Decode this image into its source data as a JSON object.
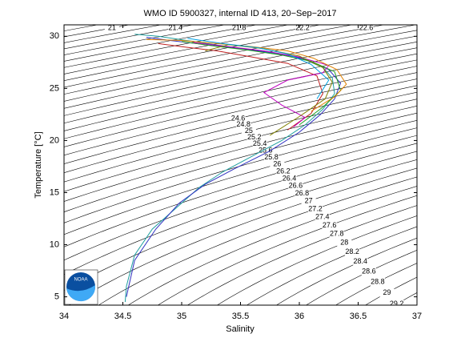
{
  "chart_data": {
    "type": "ts_diagram",
    "title": "WMO ID 5900327, internal ID 413, 20−Sep−2017",
    "x_label": "Salinity",
    "y_label": "Temperature [°C]",
    "xlim": [
      34,
      37
    ],
    "xticks": [
      34,
      34.5,
      35,
      35.5,
      36,
      36.5,
      37
    ],
    "ylim": [
      4.2,
      31.1
    ],
    "yticks": [
      5,
      10,
      15,
      20,
      25,
      30
    ],
    "contour_levels": [
      20.4,
      20.6,
      20.8,
      21,
      21.2,
      21.4,
      21.6,
      21.8,
      22,
      22.2,
      22.4,
      22.6,
      22.8,
      23,
      23.2,
      23.4,
      23.6,
      23.8,
      24,
      24.2,
      24.4,
      24.6,
      24.8,
      25,
      25.2,
      25.4,
      25.6,
      25.8,
      26,
      26.2,
      26.4,
      26.6,
      26.8,
      27,
      27.2,
      27.4,
      27.6,
      27.8,
      28,
      28.2,
      28.4,
      28.6,
      28.8,
      29,
      29.2,
      29.4
    ],
    "series": [
      {
        "color": "#1f9fa0",
        "x": [
          34.52,
          34.53,
          34.6,
          34.75,
          34.95,
          35.15,
          35.35,
          35.6,
          35.85,
          36.05,
          36.2,
          36.3,
          36.28,
          36.2,
          36.0,
          35.7,
          35.4,
          35.1,
          34.8,
          34.6
        ],
        "values": [
          4.5,
          6,
          9,
          11.5,
          13.5,
          15.5,
          17,
          18.5,
          20,
          21.5,
          23,
          24.5,
          26,
          27,
          28,
          28.5,
          29,
          29.5,
          30,
          30.2
        ]
      },
      {
        "color": "#3030c0",
        "x": [
          34.53,
          34.6,
          34.78,
          34.98,
          35.2,
          35.45,
          35.75,
          36.0,
          36.18,
          36.3,
          36.35,
          36.25,
          36.05,
          35.8,
          35.5,
          35.2,
          34.9,
          34.7
        ],
        "values": [
          5,
          8.5,
          11.5,
          14,
          15.8,
          17.3,
          19,
          20.8,
          22.5,
          24,
          25.5,
          26.8,
          27.8,
          28.4,
          28.8,
          29.2,
          29.6,
          29.9
        ]
      },
      {
        "color": "#c02020",
        "x": [
          35.9,
          36.1,
          36.2,
          36.15,
          35.9,
          35.6,
          35.3,
          35.0,
          34.8
        ],
        "values": [
          21,
          22.6,
          24.5,
          26.2,
          27.4,
          28.0,
          28.6,
          29.0,
          29.3
        ]
      },
      {
        "color": "#20a020",
        "x": [
          36.0,
          36.2,
          36.35,
          36.3,
          36.1,
          35.85,
          35.55,
          35.25,
          35.0
        ],
        "values": [
          21.5,
          23.2,
          24.8,
          26.6,
          27.6,
          28.2,
          28.7,
          29.1,
          29.5
        ]
      },
      {
        "color": "#c000c0",
        "x": [
          35.95,
          36.05,
          35.85,
          35.7,
          35.9,
          36.2,
          36.25,
          36.0,
          35.7,
          35.4,
          35.1
        ],
        "values": [
          21.3,
          22.2,
          23.4,
          24.6,
          25.8,
          26.5,
          27.2,
          28.0,
          28.6,
          29.0,
          29.4
        ]
      },
      {
        "color": "#e08000",
        "x": [
          36.1,
          36.3,
          36.4,
          36.32,
          36.12,
          35.9,
          35.6,
          35.3,
          35.0,
          34.7
        ],
        "values": [
          22.8,
          24.2,
          25.4,
          26.8,
          27.9,
          28.6,
          29.0,
          29.3,
          29.6,
          29.7
        ]
      },
      {
        "color": "#808000",
        "x": [
          35.75,
          36.0,
          36.22,
          36.28,
          36.2,
          36.0,
          35.7,
          35.4,
          35.2
        ],
        "values": [
          20.5,
          22.3,
          24.0,
          25.6,
          27.0,
          28.1,
          28.8,
          29.2,
          28.6
        ]
      },
      {
        "color": "#00a0e0",
        "x": [
          36.15,
          36.25,
          36.1,
          35.9,
          35.65,
          35.35,
          35.05
        ],
        "values": [
          24.0,
          25.8,
          27.3,
          28.3,
          28.9,
          29.3,
          29.8
        ]
      }
    ]
  }
}
